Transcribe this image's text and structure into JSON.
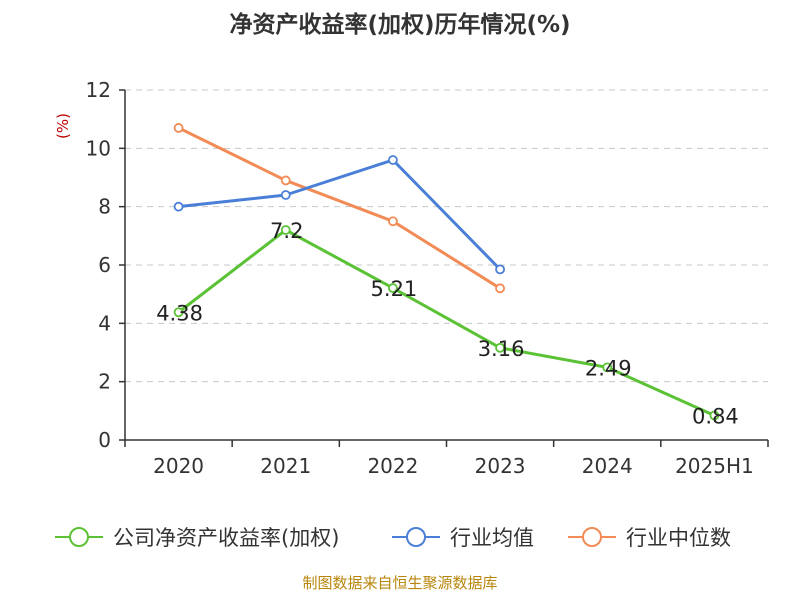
{
  "chart_data": {
    "type": "line",
    "title": "净资产收益率(加权)历年情况(%)",
    "ylabel": "(%)",
    "categories": [
      "2020",
      "2021",
      "2022",
      "2023",
      "2024",
      "2025H1"
    ],
    "ylim": [
      0,
      12
    ],
    "yticks": [
      0,
      2,
      4,
      6,
      8,
      10,
      12
    ],
    "grid": true,
    "legend_position": "bottom",
    "series": [
      {
        "name": "公司净资产收益率(加权)",
        "color": "#5bc236",
        "values": [
          4.38,
          7.2,
          5.21,
          3.16,
          2.49,
          0.84
        ],
        "labels": [
          "4.38",
          "7.2",
          "5.21",
          "3.16",
          "2.49",
          "0.84"
        ]
      },
      {
        "name": "行业均值",
        "color": "#4a7fd8",
        "values": [
          8.0,
          8.4,
          9.6,
          5.85,
          null,
          null
        ]
      },
      {
        "name": "行业中位数",
        "color": "#f28b55",
        "values": [
          10.7,
          8.9,
          7.5,
          5.2,
          null,
          null
        ]
      }
    ]
  },
  "source_text": "制图数据来自恒生聚源数据库"
}
